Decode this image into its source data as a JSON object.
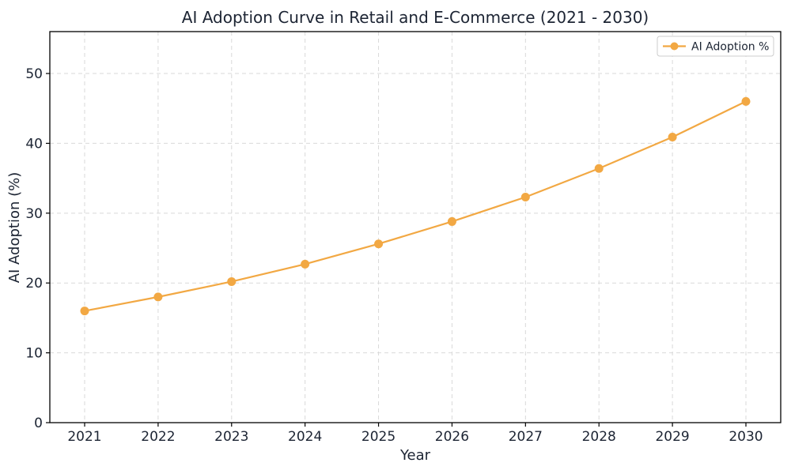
{
  "chart_data": {
    "type": "line",
    "title": "AI Adoption Curve in Retail and E-Commerce (2021 - 2030)",
    "xlabel": "Year",
    "ylabel": "AI Adoption (%)",
    "categories": [
      "2021",
      "2022",
      "2023",
      "2024",
      "2025",
      "2026",
      "2027",
      "2028",
      "2029",
      "2030"
    ],
    "series": [
      {
        "name": "AI Adoption %",
        "color": "#F2A843",
        "marker": "circle",
        "values": [
          16.0,
          18.0,
          20.2,
          22.7,
          25.6,
          28.8,
          32.3,
          36.4,
          40.9,
          46.0
        ]
      }
    ],
    "ylim": [
      0,
      56
    ],
    "yticks": [
      0,
      10,
      20,
      30,
      40,
      50
    ],
    "grid": true,
    "grid_style": "dashed",
    "legend": {
      "position": "upper right",
      "entries": [
        "AI Adoption %"
      ]
    },
    "colors": {
      "line": "#F2A843",
      "grid": "#D9D9D9",
      "spine": "#000000",
      "legend_border": "#CCCCCC",
      "background": "#FFFFFF"
    }
  }
}
